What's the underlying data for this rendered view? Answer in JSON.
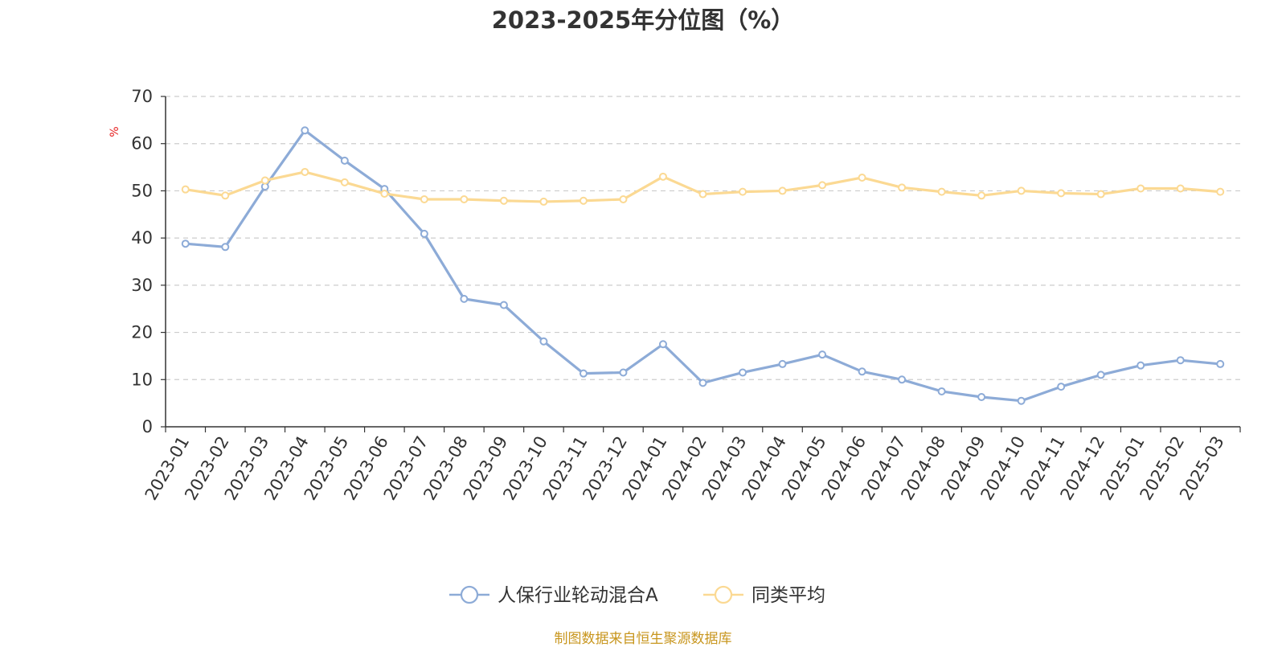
{
  "chart_data": {
    "type": "line",
    "title": "2023-2025年分位图（%）",
    "ylabel": "%",
    "ylim": [
      0,
      70
    ],
    "yticks": [
      "0",
      "10",
      "20",
      "30",
      "40",
      "50",
      "60",
      "70"
    ],
    "grid": true,
    "legend_position": "bottom",
    "categories": [
      "2023-01",
      "2023-02",
      "2023-03",
      "2023-04",
      "2023-05",
      "2023-06",
      "2023-07",
      "2023-08",
      "2023-09",
      "2023-10",
      "2023-11",
      "2023-12",
      "2024-01",
      "2024-02",
      "2024-03",
      "2024-04",
      "2024-05",
      "2024-06",
      "2024-07",
      "2024-08",
      "2024-09",
      "2024-10",
      "2024-11",
      "2024-12",
      "2025-01",
      "2025-02",
      "2025-03"
    ],
    "series": [
      {
        "name": "人保行业轮动混合A",
        "color": "#8dabd7",
        "values": [
          38.8,
          38.1,
          50.9,
          62.8,
          56.4,
          50.4,
          40.9,
          27.1,
          25.8,
          18.1,
          11.3,
          11.5,
          17.5,
          9.3,
          11.5,
          13.3,
          15.3,
          11.7,
          10.0,
          7.5,
          6.3,
          5.5,
          8.5,
          11.0,
          13.0,
          14.1,
          13.3
        ]
      },
      {
        "name": "同类平均",
        "color": "#fbd993",
        "values": [
          50.3,
          49.0,
          52.2,
          54.0,
          51.8,
          49.4,
          48.2,
          48.2,
          47.9,
          47.7,
          47.9,
          48.2,
          53.0,
          49.3,
          49.8,
          50.0,
          51.2,
          52.8,
          50.7,
          49.8,
          49.0,
          50.0,
          49.5,
          49.3,
          50.5,
          50.5,
          49.8
        ]
      }
    ]
  },
  "source_note": "制图数据来自恒生聚源数据库"
}
